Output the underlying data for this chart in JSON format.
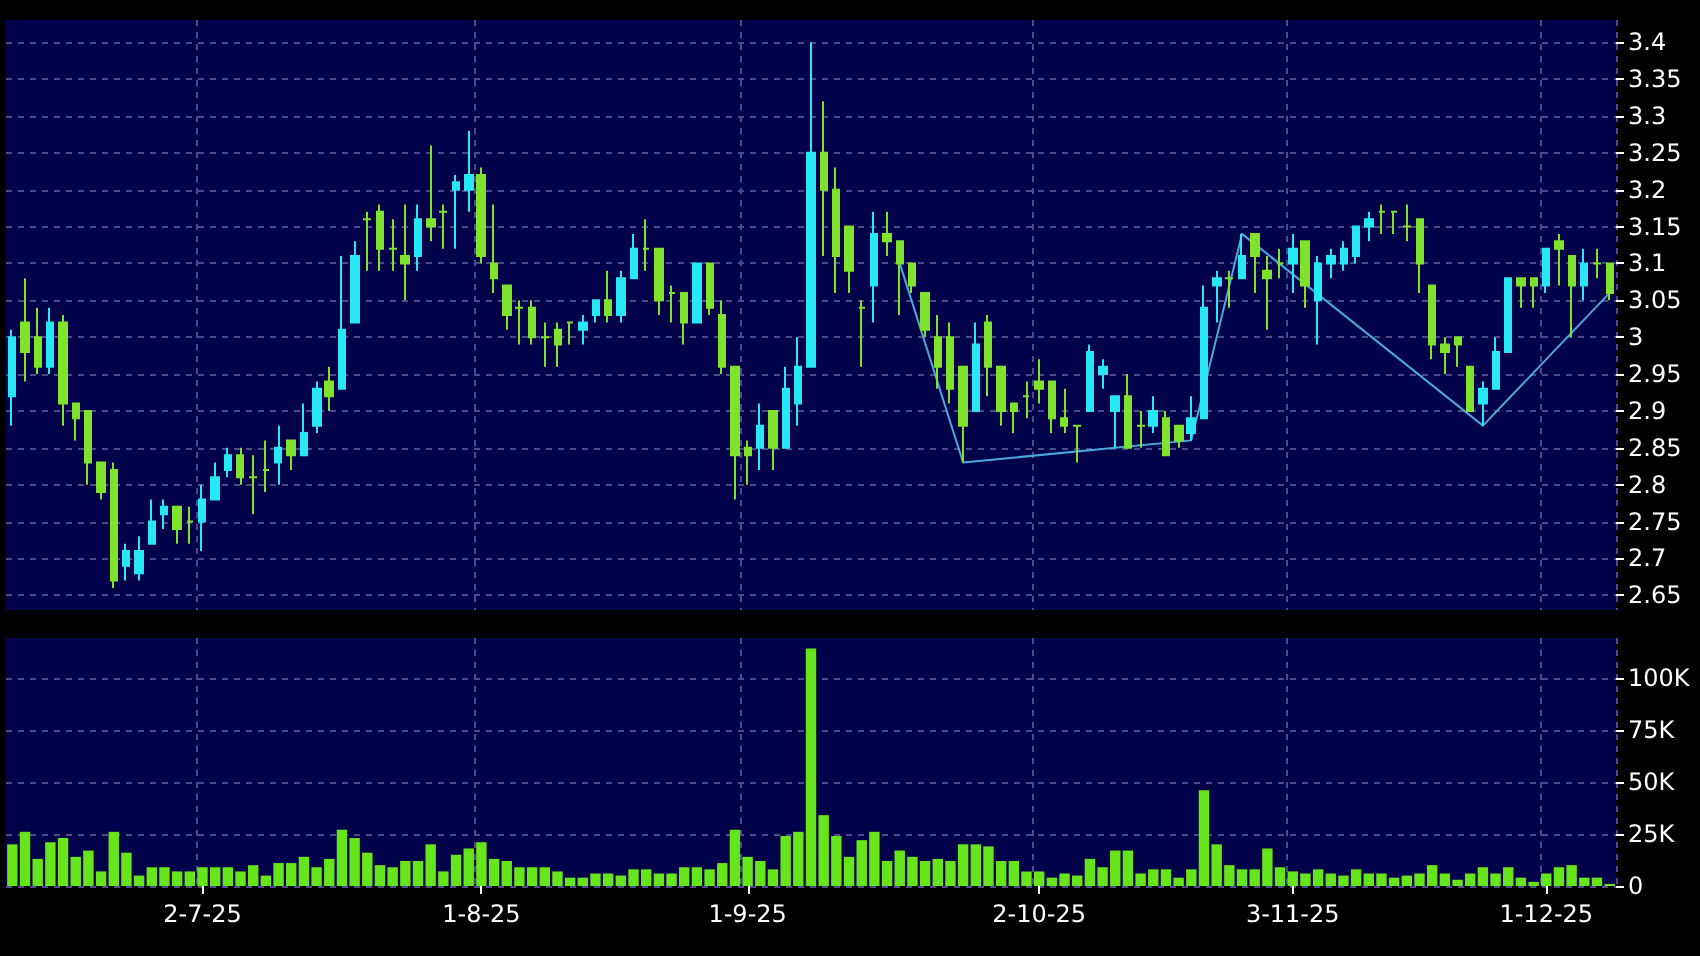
{
  "chart_data": [
    {
      "type": "candlestick",
      "tick_labels": "y",
      "grid": true,
      "ylim": [
        2.63,
        3.43
      ],
      "yticks": [
        2.65,
        2.7,
        2.75,
        2.8,
        2.85,
        2.9,
        2.95,
        3,
        3.05,
        3.1,
        3.15,
        3.2,
        3.25,
        3.3,
        3.35,
        3.4
      ],
      "colors": [
        "#27e6f5",
        "#7fe22c",
        "#7fe22c",
        "#27e6f5",
        "#7fe22c",
        "#7fe22c",
        "#7fe22c",
        "#7fe22c",
        "#7fe22c",
        "#27e6f5",
        "#27e6f5",
        "#27e6f5",
        "#27e6f5",
        "#7fe22c",
        "#7fe22c",
        "#27e6f5",
        "#27e6f5",
        "#27e6f5",
        "#7fe22c",
        "#7fe22c",
        "#7fe22c",
        "#27e6f5",
        "#7fe22c",
        "#27e6f5",
        "#27e6f5",
        "#7fe22c",
        "#27e6f5",
        "#27e6f5",
        "#7fe22c",
        "#7fe22c",
        "#7fe22c",
        "#7fe22c",
        "#27e6f5",
        "#7fe22c",
        "#7fe22c",
        "#27e6f5",
        "#27e6f5",
        "#7fe22c",
        "#7fe22c",
        "#7fe22c",
        "#7fe22c",
        "#7fe22c",
        "#7fe22c",
        "#7fe22c",
        "#7fe22c",
        "#27e6f5",
        "#27e6f5",
        "#7fe22c",
        "#27e6f5",
        "#27e6f5",
        "#7fe22c",
        "#7fe22c",
        "#7fe22c",
        "#7fe22c",
        "#27e6f5",
        "#7fe22c",
        "#7fe22c",
        "#7fe22c",
        "#7fe22c",
        "#27e6f5",
        "#7fe22c",
        "#27e6f5",
        "#27e6f5",
        "#27e6f5",
        "#7fe22c",
        "#7fe22c",
        "#7fe22c",
        "#7fe22c",
        "#27e6f5",
        "#7fe22c",
        "#7fe22c",
        "#7fe22c",
        "#7fe22c",
        "#7fe22c",
        "#7fe22c",
        "#7fe22c",
        "#27e6f5",
        "#7fe22c",
        "#7fe22c",
        "#7fe22c",
        "#7fe22c",
        "#7fe22c",
        "#7fe22c",
        "#7fe22c",
        "#7fe22c",
        "#27e6f5",
        "#27e6f5",
        "#27e6f5",
        "#7fe22c",
        "#7fe22c",
        "#27e6f5",
        "#7fe22c",
        "#7fe22c",
        "#27e6f5",
        "#27e6f5",
        "#27e6f5",
        "#7fe22c",
        "#27e6f5",
        "#7fe22c",
        "#7fe22c",
        "#7fe22c",
        "#27e6f5",
        "#7fe22c",
        "#27e6f5",
        "#27e6f5",
        "#27e6f5",
        "#27e6f5",
        "#27e6f5",
        "#7fe22c",
        "#7fe22c",
        "#7fe22c",
        "#7fe22c",
        "#7fe22c",
        "#7fe22c",
        "#7fe22c",
        "#7fe22c",
        "#27e6f5",
        "#27e6f5",
        "#27e6f5",
        "#7fe22c",
        "#7fe22c",
        "#27e6f5",
        "#7fe22c",
        "#7fe22c",
        "#27e6f5",
        "#7fe22c",
        "#7fe22c"
      ],
      "categories": [
        null,
        null,
        null,
        null,
        null,
        null,
        null,
        null,
        null,
        null,
        null,
        null,
        null,
        null,
        null,
        null,
        null,
        null,
        null,
        null,
        null,
        null,
        null,
        null,
        null,
        null,
        null,
        null,
        null,
        null,
        null,
        null,
        null,
        null,
        null,
        null,
        null,
        null,
        null,
        null,
        null,
        null,
        null,
        null,
        null,
        null,
        null,
        null,
        null,
        null,
        null,
        null,
        null,
        null,
        null,
        null,
        null,
        null,
        null,
        null,
        null,
        null,
        null,
        null,
        null,
        null,
        null,
        null,
        null,
        null,
        null,
        null,
        null,
        null,
        null,
        null,
        null,
        null,
        null,
        null,
        null,
        null,
        null,
        null,
        null,
        null,
        null,
        null,
        null,
        null,
        null,
        null,
        null,
        null,
        null,
        null,
        null,
        null,
        null,
        null,
        null,
        null,
        null,
        null,
        null,
        null,
        null,
        null,
        null,
        null,
        null,
        null,
        null,
        null,
        null,
        null,
        null,
        null,
        null,
        null,
        null,
        null,
        null,
        null,
        null,
        null,
        null
      ],
      "ohlc": [
        [
          2.92,
          3.01,
          2.88,
          3.0
        ],
        [
          3.02,
          3.08,
          2.94,
          2.98
        ],
        [
          3.0,
          3.04,
          2.95,
          2.96
        ],
        [
          2.96,
          3.04,
          2.95,
          3.02
        ],
        [
          3.02,
          3.03,
          2.88,
          2.91
        ],
        [
          2.91,
          2.91,
          2.86,
          2.89
        ],
        [
          2.9,
          2.9,
          2.8,
          2.83
        ],
        [
          2.83,
          2.83,
          2.78,
          2.79
        ],
        [
          2.82,
          2.83,
          2.66,
          2.67
        ],
        [
          2.69,
          2.72,
          2.67,
          2.71
        ],
        [
          2.68,
          2.73,
          2.67,
          2.71
        ],
        [
          2.72,
          2.78,
          2.72,
          2.75
        ],
        [
          2.76,
          2.78,
          2.74,
          2.77
        ],
        [
          2.77,
          2.77,
          2.72,
          2.74
        ],
        [
          2.75,
          2.77,
          2.72,
          2.75
        ],
        [
          2.75,
          2.8,
          2.71,
          2.78
        ],
        [
          2.78,
          2.83,
          2.78,
          2.81
        ],
        [
          2.82,
          2.85,
          2.81,
          2.84
        ],
        [
          2.84,
          2.85,
          2.8,
          2.81
        ],
        [
          2.81,
          2.84,
          2.76,
          2.81
        ],
        [
          2.82,
          2.86,
          2.79,
          2.82
        ],
        [
          2.83,
          2.88,
          2.8,
          2.85
        ],
        [
          2.86,
          2.86,
          2.82,
          2.84
        ],
        [
          2.84,
          2.91,
          2.84,
          2.87
        ],
        [
          2.88,
          2.94,
          2.87,
          2.93
        ],
        [
          2.94,
          2.96,
          2.9,
          2.92
        ],
        [
          2.93,
          3.11,
          2.93,
          3.01
        ],
        [
          3.02,
          3.13,
          3.02,
          3.11
        ],
        [
          3.16,
          3.17,
          3.09,
          3.16
        ],
        [
          3.17,
          3.18,
          3.09,
          3.12
        ],
        [
          3.12,
          3.16,
          3.09,
          3.12
        ],
        [
          3.11,
          3.18,
          3.05,
          3.1
        ],
        [
          3.11,
          3.18,
          3.09,
          3.16
        ],
        [
          3.16,
          3.26,
          3.13,
          3.15
        ],
        [
          3.17,
          3.18,
          3.12,
          3.17
        ],
        [
          3.2,
          3.22,
          3.12,
          3.21
        ],
        [
          3.2,
          3.28,
          3.17,
          3.22
        ],
        [
          3.22,
          3.23,
          3.1,
          3.11
        ],
        [
          3.1,
          3.18,
          3.06,
          3.08
        ],
        [
          3.07,
          3.07,
          3.01,
          3.03
        ],
        [
          3.04,
          3.05,
          2.99,
          3.04
        ],
        [
          3.04,
          3.05,
          2.99,
          3.0
        ],
        [
          3.0,
          3.02,
          2.96,
          3.0
        ],
        [
          3.01,
          3.02,
          2.96,
          2.99
        ],
        [
          3.02,
          3.02,
          2.99,
          3.02
        ],
        [
          3.01,
          3.03,
          2.99,
          3.02
        ],
        [
          3.03,
          3.05,
          3.02,
          3.05
        ],
        [
          3.05,
          3.09,
          3.02,
          3.03
        ],
        [
          3.03,
          3.09,
          3.02,
          3.08
        ],
        [
          3.08,
          3.14,
          3.08,
          3.12
        ],
        [
          3.12,
          3.16,
          3.09,
          3.12
        ],
        [
          3.12,
          3.12,
          3.03,
          3.05
        ],
        [
          3.06,
          3.07,
          3.02,
          3.06
        ],
        [
          3.06,
          3.06,
          2.99,
          3.02
        ],
        [
          3.02,
          3.1,
          3.02,
          3.1
        ],
        [
          3.1,
          3.1,
          3.03,
          3.04
        ],
        [
          3.03,
          3.05,
          2.95,
          2.96
        ],
        [
          2.96,
          2.96,
          2.78,
          2.84
        ],
        [
          2.85,
          2.86,
          2.8,
          2.84
        ],
        [
          2.85,
          2.91,
          2.82,
          2.88
        ],
        [
          2.9,
          2.9,
          2.82,
          2.85
        ],
        [
          2.85,
          2.96,
          2.85,
          2.93
        ],
        [
          2.91,
          3.0,
          2.88,
          2.96
        ],
        [
          2.96,
          3.4,
          2.96,
          3.25
        ],
        [
          3.25,
          3.32,
          3.11,
          3.2
        ],
        [
          3.2,
          3.23,
          3.06,
          3.11
        ],
        [
          3.15,
          3.15,
          3.06,
          3.09
        ],
        [
          3.04,
          3.05,
          2.96,
          3.04
        ],
        [
          3.07,
          3.17,
          3.02,
          3.14
        ],
        [
          3.14,
          3.17,
          3.11,
          3.13
        ],
        [
          3.13,
          3.13,
          3.03,
          3.1
        ],
        [
          3.1,
          3.1,
          3.06,
          3.07
        ],
        [
          3.06,
          3.06,
          3.0,
          3.01
        ],
        [
          3.0,
          3.03,
          2.93,
          2.96
        ],
        [
          3.0,
          3.02,
          2.91,
          2.93
        ],
        [
          2.96,
          2.96,
          2.83,
          2.88
        ],
        [
          2.9,
          3.02,
          2.9,
          2.99
        ],
        [
          3.02,
          3.03,
          2.92,
          2.96
        ],
        [
          2.96,
          2.96,
          2.88,
          2.9
        ],
        [
          2.91,
          2.91,
          2.87,
          2.9
        ],
        [
          2.92,
          2.94,
          2.89,
          2.92
        ],
        [
          2.94,
          2.97,
          2.91,
          2.93
        ],
        [
          2.94,
          2.94,
          2.87,
          2.89
        ],
        [
          2.89,
          2.93,
          2.87,
          2.88
        ],
        [
          2.88,
          2.88,
          2.83,
          2.88
        ],
        [
          2.9,
          2.99,
          2.9,
          2.98
        ],
        [
          2.95,
          2.97,
          2.93,
          2.96
        ],
        [
          2.9,
          2.92,
          2.85,
          2.92
        ],
        [
          2.92,
          2.95,
          2.85,
          2.85
        ],
        [
          2.88,
          2.9,
          2.85,
          2.88
        ],
        [
          2.88,
          2.92,
          2.87,
          2.9
        ],
        [
          2.89,
          2.9,
          2.84,
          2.84
        ],
        [
          2.88,
          2.88,
          2.85,
          2.86
        ],
        [
          2.87,
          2.92,
          2.86,
          2.89
        ],
        [
          2.89,
          3.07,
          2.89,
          3.04
        ],
        [
          3.07,
          3.09,
          3.02,
          3.08
        ],
        [
          3.08,
          3.09,
          3.04,
          3.08
        ],
        [
          3.08,
          3.14,
          3.08,
          3.11
        ],
        [
          3.14,
          3.14,
          3.06,
          3.11
        ],
        [
          3.09,
          3.11,
          3.01,
          3.08
        ],
        [
          3.1,
          3.12,
          3.08,
          3.1
        ],
        [
          3.1,
          3.14,
          3.06,
          3.12
        ],
        [
          3.13,
          3.13,
          3.04,
          3.07
        ],
        [
          3.05,
          3.11,
          2.99,
          3.1
        ],
        [
          3.1,
          3.12,
          3.08,
          3.11
        ],
        [
          3.1,
          3.13,
          3.09,
          3.12
        ],
        [
          3.11,
          3.15,
          3.1,
          3.15
        ],
        [
          3.15,
          3.17,
          3.13,
          3.16
        ],
        [
          3.17,
          3.18,
          3.14,
          3.17
        ],
        [
          3.17,
          3.17,
          3.14,
          3.17
        ],
        [
          3.15,
          3.18,
          3.13,
          3.15
        ],
        [
          3.16,
          3.16,
          3.06,
          3.1
        ],
        [
          3.07,
          3.07,
          2.97,
          2.99
        ],
        [
          2.99,
          3.0,
          2.95,
          2.98
        ],
        [
          3.0,
          3.0,
          2.96,
          2.99
        ],
        [
          2.96,
          2.96,
          2.9,
          2.9
        ],
        [
          2.91,
          2.94,
          2.88,
          2.93
        ],
        [
          2.93,
          3.0,
          2.93,
          2.98
        ],
        [
          2.98,
          3.08,
          2.98,
          3.08
        ],
        [
          3.08,
          3.08,
          3.04,
          3.07
        ],
        [
          3.08,
          3.08,
          3.04,
          3.07
        ],
        [
          3.07,
          3.12,
          3.06,
          3.12
        ],
        [
          3.13,
          3.14,
          3.07,
          3.12
        ],
        [
          3.11,
          3.11,
          3.0,
          3.07
        ],
        [
          3.07,
          3.12,
          3.05,
          3.1
        ],
        [
          3.1,
          3.12,
          3.08,
          3.1
        ],
        [
          3.1,
          3.1,
          3.05,
          3.06
        ]
      ],
      "series": [
        {
          "type": "line",
          "color": "#4aa8e0",
          "values": [
            null,
            null,
            null,
            null,
            null,
            null,
            null,
            null,
            null,
            null,
            null,
            null,
            null,
            null,
            null,
            null,
            null,
            null,
            null,
            null,
            null,
            null,
            null,
            null,
            null,
            null,
            null,
            null,
            null,
            null,
            null,
            null,
            null,
            null,
            null,
            null,
            null,
            null,
            null,
            null,
            null,
            null,
            null,
            null,
            null,
            null,
            null,
            null,
            null,
            null,
            null,
            null,
            null,
            null,
            null,
            null,
            null,
            null,
            null,
            null,
            null,
            null,
            null,
            null,
            null,
            null,
            null,
            null,
            null,
            null,
            3.1,
            null,
            null,
            null,
            null,
            2.83,
            null,
            null,
            null,
            null,
            null,
            null,
            null,
            null,
            null,
            null,
            null,
            null,
            null,
            null,
            null,
            null,
            null,
            2.86,
            null,
            null,
            null,
            3.14,
            null,
            null,
            null,
            null,
            null,
            null,
            null,
            null,
            null,
            null,
            null,
            null,
            null,
            null,
            null,
            null,
            null,
            null,
            2.88,
            null,
            null,
            null,
            null,
            null,
            null,
            null,
            null,
            null,
            3.06
          ]
        }
      ]
    },
    {
      "type": "bar",
      "grid": true,
      "color": "#66e61a",
      "ylim": [
        0,
        119
      ],
      "yticks": [
        {
          "value": 0,
          "label": "0"
        },
        {
          "value": 25,
          "label": "25K"
        },
        {
          "value": 50,
          "label": "50K"
        },
        {
          "value": 75,
          "label": "75K"
        },
        {
          "value": 100,
          "label": "100K"
        }
      ],
      "categories": [
        null,
        null,
        null,
        null,
        null,
        null,
        null,
        null,
        null,
        null,
        null,
        null,
        null,
        null,
        null,
        "2-7-25",
        null,
        null,
        null,
        null,
        null,
        null,
        null,
        null,
        null,
        null,
        null,
        null,
        null,
        null,
        null,
        null,
        null,
        null,
        null,
        null,
        null,
        "1-8-25",
        null,
        null,
        null,
        null,
        null,
        null,
        null,
        null,
        null,
        null,
        null,
        null,
        null,
        null,
        null,
        null,
        null,
        null,
        null,
        null,
        "1-9-25",
        null,
        null,
        null,
        null,
        null,
        null,
        null,
        null,
        null,
        null,
        null,
        null,
        null,
        null,
        null,
        null,
        null,
        null,
        null,
        null,
        null,
        null,
        "2-10-25",
        null,
        null,
        null,
        null,
        null,
        null,
        null,
        null,
        null,
        null,
        null,
        null,
        null,
        null,
        null,
        null,
        null,
        null,
        null,
        "3-11-25",
        null,
        null,
        null,
        null,
        null,
        null,
        null,
        null,
        null,
        null,
        null,
        null,
        null,
        null,
        null,
        null,
        null,
        null,
        null,
        "1-12-25",
        null,
        null,
        null,
        null,
        null
      ],
      "values": [
        20,
        26,
        13,
        21,
        23,
        14,
        17,
        7,
        26,
        16,
        5,
        9,
        9,
        7,
        7,
        9,
        9,
        9,
        7,
        10,
        5,
        11,
        11,
        14,
        9,
        13,
        27,
        23,
        16,
        10,
        9,
        12,
        12,
        20,
        7,
        15,
        18,
        21,
        13,
        12,
        9,
        9,
        9,
        7,
        4,
        4,
        6,
        6,
        5,
        8,
        8,
        6,
        6,
        9,
        9,
        8,
        11,
        27,
        14,
        12,
        8,
        24,
        26,
        114,
        34,
        24,
        14,
        22,
        26,
        12,
        17,
        14,
        12,
        13,
        12,
        20,
        20,
        19,
        12,
        12,
        7,
        7,
        4,
        6,
        5,
        13,
        9,
        17,
        17,
        6,
        8,
        8,
        4,
        8,
        46,
        20,
        10,
        8,
        8,
        18,
        9,
        7,
        6,
        8,
        6,
        5,
        8,
        6,
        6,
        4,
        5,
        6,
        10,
        6,
        3,
        6,
        9,
        6,
        9,
        4,
        2,
        6,
        9,
        10,
        4,
        4,
        1
      ]
    }
  ]
}
